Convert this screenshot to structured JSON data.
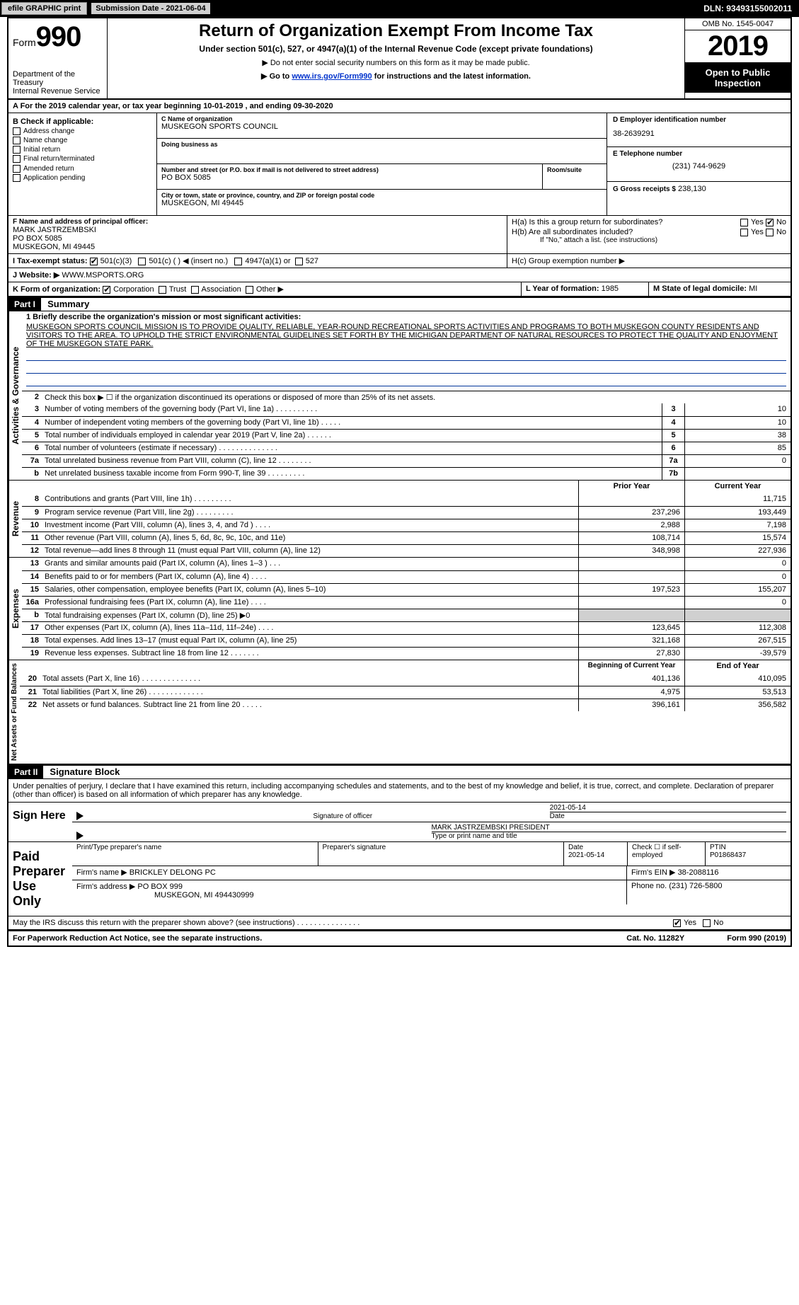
{
  "topbar": {
    "efile": "efile GRAPHIC print",
    "submission_label": "Submission Date - 2021-06-04",
    "dln": "DLN: 93493155002011"
  },
  "header": {
    "form_word": "Form",
    "form_num": "990",
    "dept1": "Department of the Treasury",
    "dept2": "Internal Revenue Service",
    "title": "Return of Organization Exempt From Income Tax",
    "sub1": "Under section 501(c), 527, or 4947(a)(1) of the Internal Revenue Code (except private foundations)",
    "sub2": "▶ Do not enter social security numbers on this form as it may be made public.",
    "sub3_pre": "▶ Go to ",
    "sub3_link": "www.irs.gov/Form990",
    "sub3_post": " for instructions and the latest information.",
    "omb": "OMB No. 1545-0047",
    "year": "2019",
    "open": "Open to Public Inspection"
  },
  "period": "A For the 2019 calendar year, or tax year beginning 10-01-2019    , and ending 09-30-2020",
  "boxB": {
    "title": "B Check if applicable:",
    "items": [
      "Address change",
      "Name change",
      "Initial return",
      "Final return/terminated",
      "Amended return",
      "Application pending"
    ]
  },
  "boxC": {
    "label": "C Name of organization",
    "name": "MUSKEGON SPORTS COUNCIL",
    "dba_label": "Doing business as",
    "street_label": "Number and street (or P.O. box if mail is not delivered to street address)",
    "room_label": "Room/suite",
    "street": "PO BOX 5085",
    "city_label": "City or town, state or province, country, and ZIP or foreign postal code",
    "city": "MUSKEGON, MI  49445"
  },
  "boxD": {
    "label": "D Employer identification number",
    "val": "38-2639291"
  },
  "boxE": {
    "label": "E Telephone number",
    "val": "(231) 744-9629"
  },
  "boxG": {
    "label": "G Gross receipts $",
    "val": "238,130"
  },
  "boxF": {
    "label": "F  Name and address of principal officer:",
    "l1": "MARK JASTRZEMBSKI",
    "l2": "PO BOX 5085",
    "l3": "MUSKEGON, MI  49445"
  },
  "boxH": {
    "a_label": "H(a)  Is this a group return for subordinates?",
    "b_label": "H(b)  Are all subordinates included?",
    "b_note": "If \"No,\" attach a list. (see instructions)",
    "c_label": "H(c)  Group exemption number ▶",
    "yes": "Yes",
    "no": "No"
  },
  "rowI": {
    "label": "I   Tax-exempt status:",
    "o1": "501(c)(3)",
    "o2": "501(c) (  ) ◀ (insert no.)",
    "o3": "4947(a)(1) or",
    "o4": "527"
  },
  "rowJ": {
    "label": "J   Website: ▶",
    "val": "WWW.MSPORTS.ORG"
  },
  "rowK": {
    "label": "K Form of organization:",
    "o1": "Corporation",
    "o2": "Trust",
    "o3": "Association",
    "o4": "Other ▶"
  },
  "rowL": {
    "label": "L Year of formation:",
    "val": "1985"
  },
  "rowM": {
    "label": "M State of legal domicile:",
    "val": "MI"
  },
  "part1": {
    "hdr": "Part I",
    "title": "Summary"
  },
  "mission": {
    "lead": "1  Briefly describe the organization's mission or most significant activities:",
    "text": "MUSKEGON SPORTS COUNCIL MISSION IS TO PROVIDE QUALITY, RELIABLE, YEAR-ROUND RECREATIONAL SPORTS ACTIVITIES AND PROGRAMS TO BOTH MUSKEGON COUNTY RESIDENTS AND VISITORS TO THE AREA. TO UPHOLD THE STRICT ENVIRONMENTAL GUIDELINES SET FORTH BY THE MICHIGAN DEPARTMENT OF NATURAL RESOURCES TO PROTECT THE QUALITY AND ENJOYMENT OF THE MUSKEGON STATE PARK."
  },
  "gov": {
    "vlabel": "Activities & Governance",
    "l2": "Check this box ▶ ☐  if the organization discontinued its operations or disposed of more than 25% of its net assets.",
    "rows": [
      {
        "n": "3",
        "d": "Number of voting members of the governing body (Part VI, line 1a)  .  .  .  .  .  .  .  .  .  .",
        "b": "3",
        "v": "10"
      },
      {
        "n": "4",
        "d": "Number of independent voting members of the governing body (Part VI, line 1b)   .  .  .  .  .",
        "b": "4",
        "v": "10"
      },
      {
        "n": "5",
        "d": "Total number of individuals employed in calendar year 2019 (Part V, line 2a)   .  .  .  .  .  .",
        "b": "5",
        "v": "38"
      },
      {
        "n": "6",
        "d": "Total number of volunteers (estimate if necessary)   .  .  .  .  .  .  .  .  .  .  .  .  .  .",
        "b": "6",
        "v": "85"
      },
      {
        "n": "7a",
        "d": "Total unrelated business revenue from Part VIII, column (C), line 12   .  .  .  .  .  .  .  .",
        "b": "7a",
        "v": "0"
      },
      {
        "n": "b",
        "d": "Net unrelated business taxable income from Form 990-T, line 39   .  .  .  .  .  .  .  .  .",
        "b": "7b",
        "v": ""
      }
    ]
  },
  "rev": {
    "vlabel": "Revenue",
    "hdr_prior": "Prior Year",
    "hdr_curr": "Current Year",
    "rows": [
      {
        "n": "8",
        "d": "Contributions and grants (Part VIII, line 1h)   .  .  .  .  .  .  .  .  .",
        "p": "",
        "c": "11,715"
      },
      {
        "n": "9",
        "d": "Program service revenue (Part VIII, line 2g)   .  .  .  .  .  .  .  .  .",
        "p": "237,296",
        "c": "193,449"
      },
      {
        "n": "10",
        "d": "Investment income (Part VIII, column (A), lines 3, 4, and 7d )   .  .  .  .",
        "p": "2,988",
        "c": "7,198"
      },
      {
        "n": "11",
        "d": "Other revenue (Part VIII, column (A), lines 5, 6d, 8c, 9c, 10c, and 11e)",
        "p": "108,714",
        "c": "15,574"
      },
      {
        "n": "12",
        "d": "Total revenue—add lines 8 through 11 (must equal Part VIII, column (A), line 12)",
        "p": "348,998",
        "c": "227,936"
      }
    ]
  },
  "exp": {
    "vlabel": "Expenses",
    "rows": [
      {
        "n": "13",
        "d": "Grants and similar amounts paid (Part IX, column (A), lines 1–3 )   .  .  .",
        "p": "",
        "c": "0"
      },
      {
        "n": "14",
        "d": "Benefits paid to or for members (Part IX, column (A), line 4)   .  .  .  .",
        "p": "",
        "c": "0"
      },
      {
        "n": "15",
        "d": "Salaries, other compensation, employee benefits (Part IX, column (A), lines 5–10)",
        "p": "197,523",
        "c": "155,207"
      },
      {
        "n": "16a",
        "d": "Professional fundraising fees (Part IX, column (A), line 11e)   .  .  .  .",
        "p": "",
        "c": "0"
      },
      {
        "n": "b",
        "d": "Total fundraising expenses (Part IX, column (D), line 25) ▶0",
        "p": "",
        "c": "",
        "shadep": true,
        "shadec": true
      },
      {
        "n": "17",
        "d": "Other expenses (Part IX, column (A), lines 11a–11d, 11f–24e)   .  .  .  .",
        "p": "123,645",
        "c": "112,308"
      },
      {
        "n": "18",
        "d": "Total expenses. Add lines 13–17 (must equal Part IX, column (A), line 25)",
        "p": "321,168",
        "c": "267,515"
      },
      {
        "n": "19",
        "d": "Revenue less expenses. Subtract line 18 from line 12   .  .  .  .  .  .  .",
        "p": "27,830",
        "c": "-39,579"
      }
    ]
  },
  "net": {
    "vlabel": "Net Assets or Fund Balances",
    "hdr_beg": "Beginning of Current Year",
    "hdr_end": "End of Year",
    "rows": [
      {
        "n": "20",
        "d": "Total assets (Part X, line 16)   .  .  .  .  .  .  .  .  .  .  .  .  .  .",
        "p": "401,136",
        "c": "410,095"
      },
      {
        "n": "21",
        "d": "Total liabilities (Part X, line 26)   .  .  .  .  .  .  .  .  .  .  .  .  .",
        "p": "4,975",
        "c": "53,513"
      },
      {
        "n": "22",
        "d": "Net assets or fund balances. Subtract line 21 from line 20   .  .  .  .  .",
        "p": "396,161",
        "c": "356,582"
      }
    ]
  },
  "part2": {
    "hdr": "Part II",
    "title": "Signature Block"
  },
  "perjury": "Under penalties of perjury, I declare that I have examined this return, including accompanying schedules and statements, and to the best of my knowledge and belief, it is true, correct, and complete. Declaration of preparer (other than officer) is based on all information of which preparer has any knowledge.",
  "sign": {
    "left": "Sign Here",
    "sig_label": "Signature of officer",
    "date": "2021-05-14",
    "date_label": "Date",
    "name": "MARK JASTRZEMBSKI  PRESIDENT",
    "name_label": "Type or print name and title"
  },
  "prep": {
    "left": "Paid Preparer Use Only",
    "r1_c1": "Print/Type preparer's name",
    "r1_c2": "Preparer's signature",
    "r1_c3_l": "Date",
    "r1_c3_v": "2021-05-14",
    "r1_c4": "Check ☐ if self-employed",
    "r1_c5_l": "PTIN",
    "r1_c5_v": "P01868437",
    "r2_l": "Firm's name    ▶",
    "r2_v": "BRICKLEY DELONG PC",
    "r2_ein_l": "Firm's EIN ▶",
    "r2_ein_v": "38-2088116",
    "r3_l": "Firm's address ▶",
    "r3_v1": "PO BOX 999",
    "r3_v2": "MUSKEGON, MI  494430999",
    "r3_ph_l": "Phone no.",
    "r3_ph_v": "(231) 726-5800"
  },
  "discuss": {
    "q": "May the IRS discuss this return with the preparer shown above? (see instructions)   .  .  .  .  .  .  .  .  .  .  .  .  .  .  .",
    "yes": "Yes",
    "no": "No"
  },
  "footer": {
    "left": "For Paperwork Reduction Act Notice, see the separate instructions.",
    "mid": "Cat. No. 11282Y",
    "right": "Form 990 (2019)"
  }
}
